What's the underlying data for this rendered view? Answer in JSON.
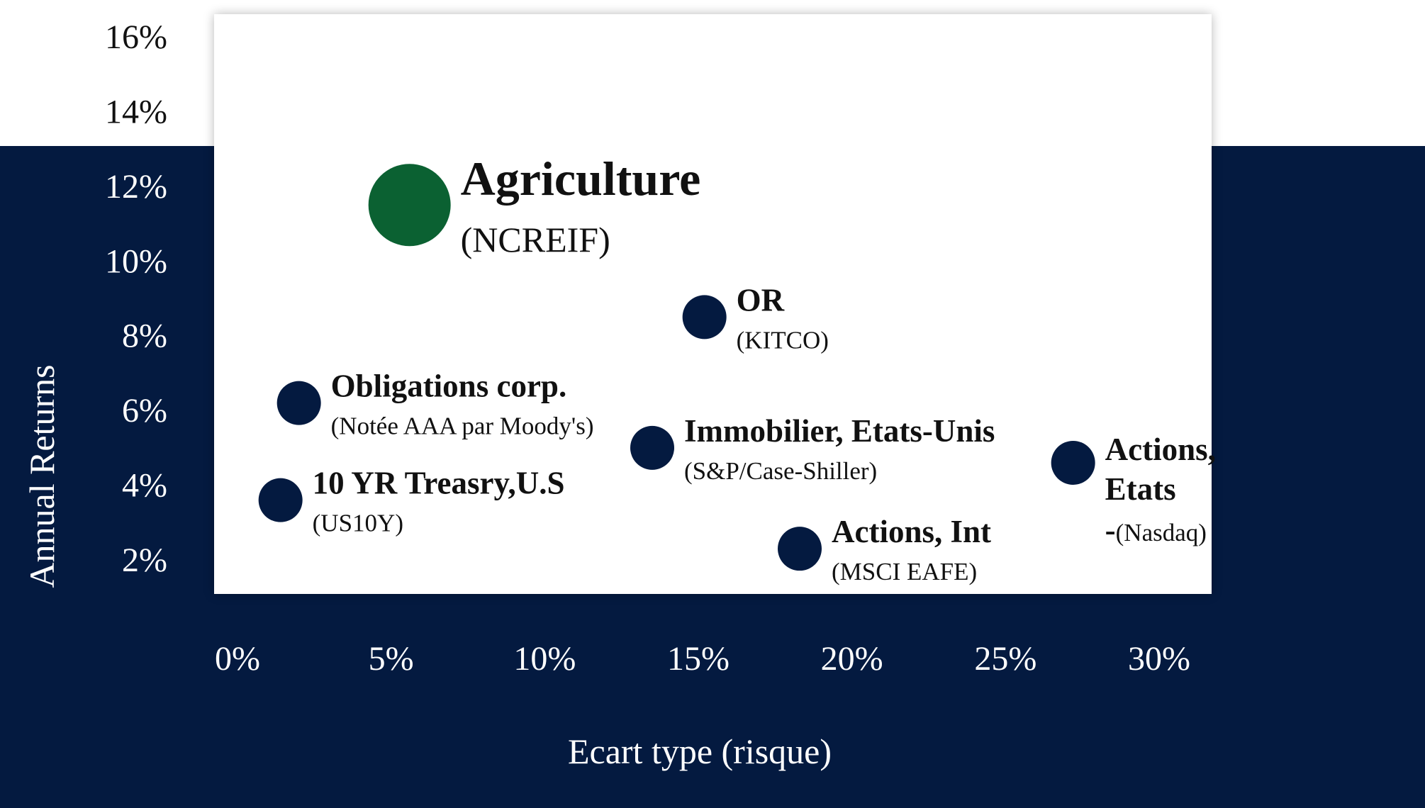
{
  "chart_data": {
    "type": "scatter",
    "xlabel": "Ecart type (risque)",
    "ylabel": "Annual Returns",
    "xlim": [
      0,
      30
    ],
    "ylim": [
      2,
      16
    ],
    "x_ticks": [
      "0%",
      "5%",
      "10%",
      "15%",
      "20%",
      "25%",
      "30%"
    ],
    "y_ticks": [
      "16%",
      "14%",
      "12%",
      "10%",
      "8%",
      "6%",
      "4%",
      "2%"
    ],
    "grid": false,
    "points": [
      {
        "name": "Agriculture",
        "sub": "(NCREIF)",
        "x": 5.6,
        "y": 11.5,
        "color": "#0b6132",
        "highlight": true
      },
      {
        "name": "OR",
        "sub": "(KITCO)",
        "x": 15.2,
        "y": 8.5,
        "color": "#041a40",
        "highlight": false
      },
      {
        "name": "Obligations corp.",
        "sub": "(Notée AAA par Moody's)",
        "x": 2.0,
        "y": 6.2,
        "color": "#041a40",
        "highlight": false
      },
      {
        "name": "Immobilier, Etats-Unis",
        "sub": "(S&P/Case-Shiller)",
        "x": 13.5,
        "y": 5.0,
        "color": "#041a40",
        "highlight": false
      },
      {
        "name": "Actions, Etats -",
        "sub": "(Nasdaq)",
        "x": 27.2,
        "y": 4.6,
        "color": "#041a40",
        "highlight": false
      },
      {
        "name": "10 YR Treasry,U.S",
        "sub": "(US10Y)",
        "x": 1.4,
        "y": 3.6,
        "color": "#041a40",
        "highlight": false
      },
      {
        "name": "Actions, Int",
        "sub": "(MSCI EAFE)",
        "x": 18.3,
        "y": 2.3,
        "color": "#041a40",
        "highlight": false
      }
    ]
  },
  "colors": {
    "navy": "#041a40",
    "green": "#0b6132",
    "panel": "#ffffff"
  }
}
